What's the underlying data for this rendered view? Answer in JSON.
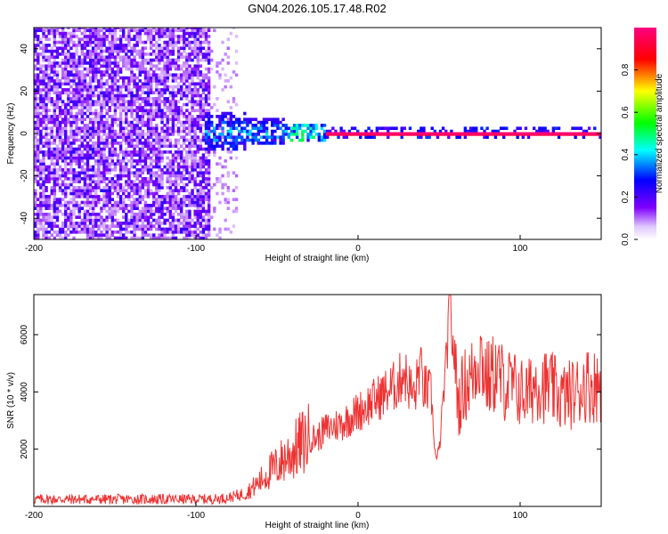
{
  "title": "GN04.2026.105.17.48.R02",
  "chart_data": [
    {
      "type": "heatmap",
      "title": "GN04.2026.105.17.48.R02",
      "xlabel": "Height of straight line (km)",
      "ylabel": "Frequency (Hz)",
      "xlim": [
        -200,
        150
      ],
      "ylim": [
        -50,
        50
      ],
      "x_ticks": [
        "-200",
        "-100",
        "0",
        "100"
      ],
      "x_tick_values": [
        -200,
        -100,
        0,
        100
      ],
      "y_ticks": [
        "-40",
        "-20",
        "0",
        "20",
        "40"
      ],
      "y_tick_values": [
        -40,
        -20,
        0,
        20,
        40
      ],
      "colorbar": {
        "label": "Normalized spectral amplitude",
        "range": [
          0,
          1
        ],
        "ticks": [
          "0.0",
          "0.2",
          "0.4",
          "0.6",
          "0.8"
        ],
        "tick_values": [
          0.0,
          0.2,
          0.4,
          0.6,
          0.8
        ],
        "colormap": [
          "#ffffff",
          "#8000ff",
          "#0000ff",
          "#00ffff",
          "#00ff00",
          "#ffff00",
          "#ff0000",
          "#ff0080"
        ]
      },
      "regions": [
        {
          "x_range": [
            -200,
            -92
          ],
          "freq_range": [
            -50,
            50
          ],
          "amplitude": 0.05,
          "note": "broadband noise"
        },
        {
          "x_range": [
            -92,
            -75
          ],
          "freq_range": [
            -50,
            50
          ],
          "amplitude": 0.02,
          "note": "sparse noise"
        },
        {
          "x_range": [
            -95,
            -45
          ],
          "freq_range": [
            -8,
            10
          ],
          "amplitude": 0.35
        },
        {
          "x_range": [
            -45,
            -20
          ],
          "freq_range": [
            -4,
            4
          ],
          "amplitude": 0.5
        },
        {
          "x_range": [
            -20,
            150
          ],
          "freq_range": [
            -1,
            1
          ],
          "amplitude": 0.95,
          "note": "carrier line"
        }
      ],
      "grid": false
    },
    {
      "type": "line",
      "xlabel": "Height of straight line (km)",
      "ylabel": "SNR (10 * v/v)",
      "xlim": [
        -200,
        150
      ],
      "ylim": [
        0,
        7400
      ],
      "x_ticks": [
        "-200",
        "-100",
        "0",
        "100"
      ],
      "x_tick_values": [
        -200,
        -100,
        0,
        100
      ],
      "y_ticks": [
        "2000",
        "4000",
        "6000"
      ],
      "y_tick_values": [
        2000,
        4000,
        6000
      ],
      "color": "#ee3333",
      "series": [
        {
          "x": [
            -200,
            -180,
            -160,
            -140,
            -120,
            -100,
            -90,
            -80,
            -70,
            -65,
            -60,
            -55,
            -50,
            -45,
            -40,
            -35,
            -30,
            -25,
            -20,
            -15,
            -10,
            -5,
            0,
            5,
            10,
            15,
            20,
            25,
            28,
            30,
            35,
            38,
            40,
            45,
            48,
            50,
            55,
            57,
            58,
            60,
            62,
            65,
            70,
            75,
            80,
            85,
            90,
            95,
            100,
            105,
            110,
            115,
            120,
            125,
            130,
            135,
            140,
            145,
            150
          ],
          "y": [
            250,
            250,
            250,
            250,
            250,
            250,
            260,
            300,
            450,
            650,
            900,
            1200,
            1400,
            1700,
            1900,
            2200,
            2400,
            2400,
            2700,
            2800,
            2900,
            3100,
            3300,
            3500,
            3700,
            3900,
            4100,
            4300,
            4800,
            4400,
            3800,
            5000,
            4200,
            3900,
            1600,
            1900,
            5500,
            7400,
            5800,
            5000,
            3500,
            4200,
            4500,
            5400,
            4400,
            4700,
            4300,
            4200,
            4000,
            3900,
            4400,
            4200,
            4100,
            3800,
            3900,
            4000,
            4300,
            4200,
            4300
          ]
        }
      ],
      "grid": false
    }
  ]
}
